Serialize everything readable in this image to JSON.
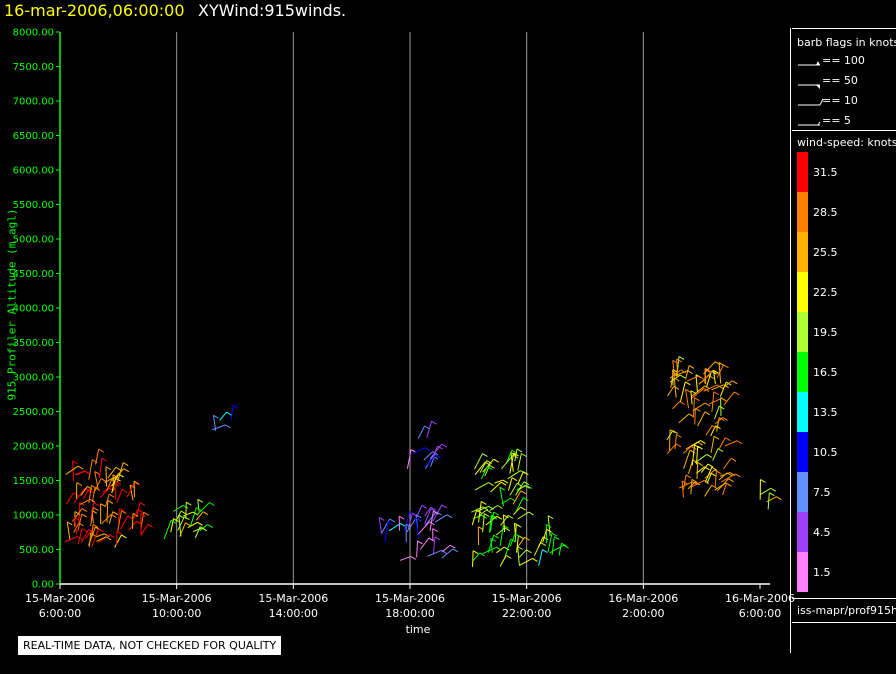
{
  "header": {
    "date": "16-mar-2006,06:00:00",
    "variable": "XYWind:915winds."
  },
  "footer": {
    "quality_note": "REAL-TIME DATA, NOT CHECKED FOR QUALITY",
    "source": "iss-mapr/prof915h"
  },
  "legend": {
    "barb_title": "barb flags in knots",
    "barbs": [
      {
        "label": "== 100"
      },
      {
        "label": "== 50"
      },
      {
        "label": "== 10"
      },
      {
        "label": "== 5"
      }
    ],
    "colorbar_title": "wind-speed: knots",
    "colorbar": [
      {
        "value": "31.5",
        "color": "#ff0000"
      },
      {
        "value": "28.5",
        "color": "#ff8000"
      },
      {
        "value": "25.5",
        "color": "#ffb000"
      },
      {
        "value": "22.5",
        "color": "#ffff00"
      },
      {
        "value": "19.5",
        "color": "#b0ff30"
      },
      {
        "value": "16.5",
        "color": "#00ff00"
      },
      {
        "value": "13.5",
        "color": "#00ffff"
      },
      {
        "value": "10.5",
        "color": "#0000ff"
      },
      {
        "value": "7.5",
        "color": "#6090ff"
      },
      {
        "value": "4.5",
        "color": "#a040ff"
      },
      {
        "value": "1.5",
        "color": "#ff80ff"
      }
    ]
  },
  "chart_data": {
    "type": "scatter",
    "title": "XYWind:915winds.",
    "xlabel": "time",
    "ylabel": "915 Profiler Altitude (m agl)",
    "ylim": [
      0,
      8000
    ],
    "xlim": [
      0,
      24
    ],
    "x_unit": "hours after 15-Mar-2006 6:00:00",
    "yticks": [
      "0.00",
      "500.00",
      "1000.00",
      "1500.00",
      "2000.00",
      "2500.00",
      "3000.00",
      "3500.00",
      "4000.00",
      "4500.00",
      "5000.00",
      "5500.00",
      "6000.00",
      "6500.00",
      "7000.00",
      "7500.00",
      "8000.00"
    ],
    "xticks": [
      {
        "h": 0,
        "date": "15-Mar-2006",
        "time": "6:00:00"
      },
      {
        "h": 4,
        "date": "15-Mar-2006",
        "time": "10:00:00"
      },
      {
        "h": 8,
        "date": "15-Mar-2006",
        "time": "14:00:00"
      },
      {
        "h": 12,
        "date": "15-Mar-2006",
        "time": "18:00:00"
      },
      {
        "h": 16,
        "date": "15-Mar-2006",
        "time": "22:00:00"
      },
      {
        "h": 20,
        "date": "16-Mar-2006",
        "time": "2:00:00"
      },
      {
        "h": 24,
        "date": "16-Mar-2006",
        "time": "6:00:00"
      }
    ],
    "grid": "vertical",
    "clusters": [
      {
        "x0": 0.0,
        "x1": 2.0,
        "y0": 500,
        "y1": 1750,
        "speed": 28.5
      },
      {
        "x0": 1.9,
        "x1": 2.8,
        "y0": 550,
        "y1": 1300,
        "speed": 30.0
      },
      {
        "x0": 3.5,
        "x1": 5.0,
        "y0": 600,
        "y1": 1100,
        "speed": 20.0
      },
      {
        "x0": 5.1,
        "x1": 5.9,
        "y0": 2200,
        "y1": 2400,
        "speed": 10.5
      },
      {
        "x0": 10.9,
        "x1": 11.4,
        "y0": 500,
        "y1": 900,
        "speed": 10.0
      },
      {
        "x0": 11.6,
        "x1": 13.1,
        "y0": 300,
        "y1": 1000,
        "speed": 4.5
      },
      {
        "x0": 11.9,
        "x1": 12.8,
        "y0": 1650,
        "y1": 2150,
        "speed": 6.0
      },
      {
        "x0": 14.1,
        "x1": 15.8,
        "y0": 200,
        "y1": 1800,
        "speed": 20.0
      },
      {
        "x0": 16.2,
        "x1": 17.2,
        "y0": 250,
        "y1": 700,
        "speed": 18.0
      },
      {
        "x0": 20.8,
        "x1": 22.8,
        "y0": 1200,
        "y1": 3050,
        "speed": 25.0
      },
      {
        "x0": 23.9,
        "x1": 24.3,
        "y0": 1000,
        "y1": 1300,
        "speed": 21.0
      }
    ]
  }
}
